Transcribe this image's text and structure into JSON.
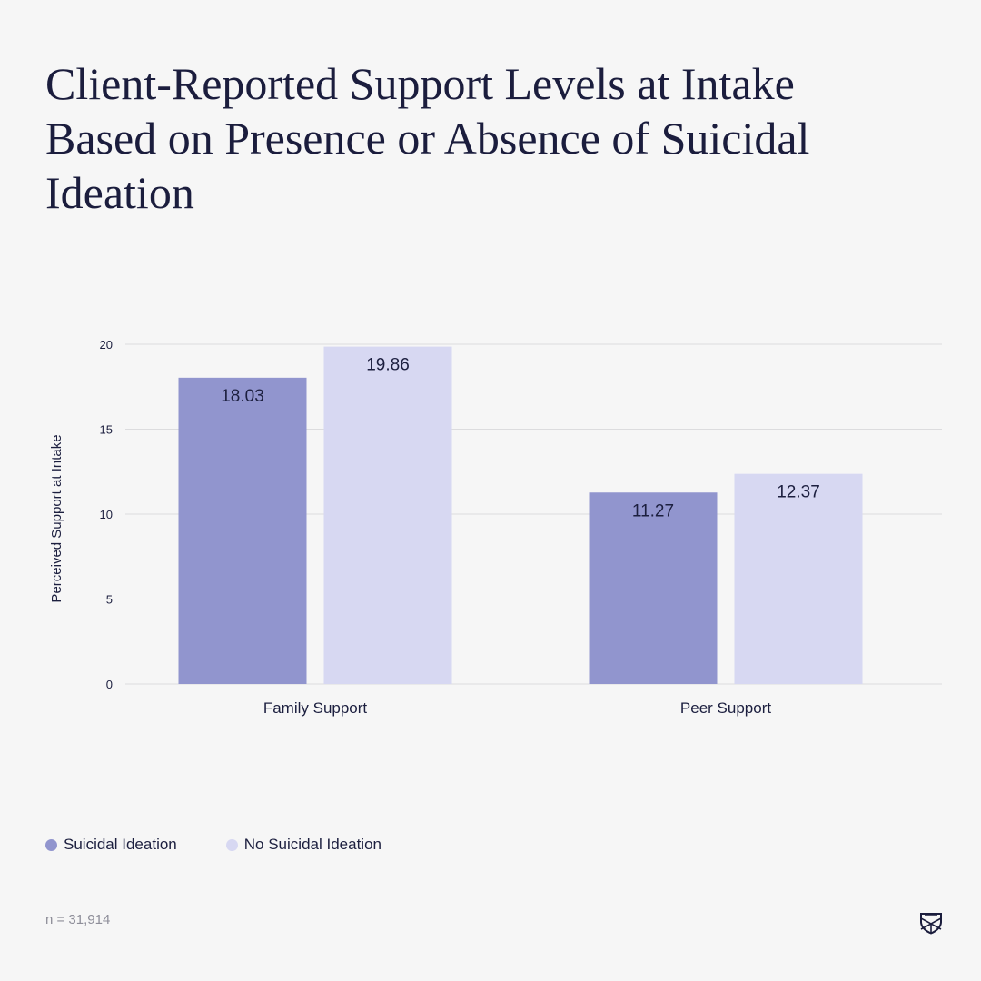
{
  "colors": {
    "background": "#f6f6f6",
    "text": "#1c1f3f",
    "grid": "#dcdcde",
    "series_si": "#9195ce",
    "series_nosi": "#d7d8f2",
    "footnote": "#8e8e99"
  },
  "footnote": "n = 31,914",
  "logo_icon": "shield-crest-icon",
  "chart_data": {
    "type": "bar",
    "title": "Client-Reported Support Levels at Intake Based on Presence or Absence of Suicidal Ideation",
    "xlabel": "",
    "ylabel": "Perceived Support at Intake",
    "ylim": [
      0,
      20
    ],
    "yticks": [
      0,
      5,
      10,
      15,
      20
    ],
    "grid": true,
    "legend_position": "bottom-left",
    "categories": [
      "Family Support",
      "Peer Support"
    ],
    "series": [
      {
        "name": "Suicidal Ideation",
        "values": [
          18.03,
          11.27
        ],
        "color": "#9195ce"
      },
      {
        "name": "No Suicidal Ideation",
        "values": [
          19.86,
          12.37
        ],
        "color": "#d7d8f2"
      }
    ]
  }
}
